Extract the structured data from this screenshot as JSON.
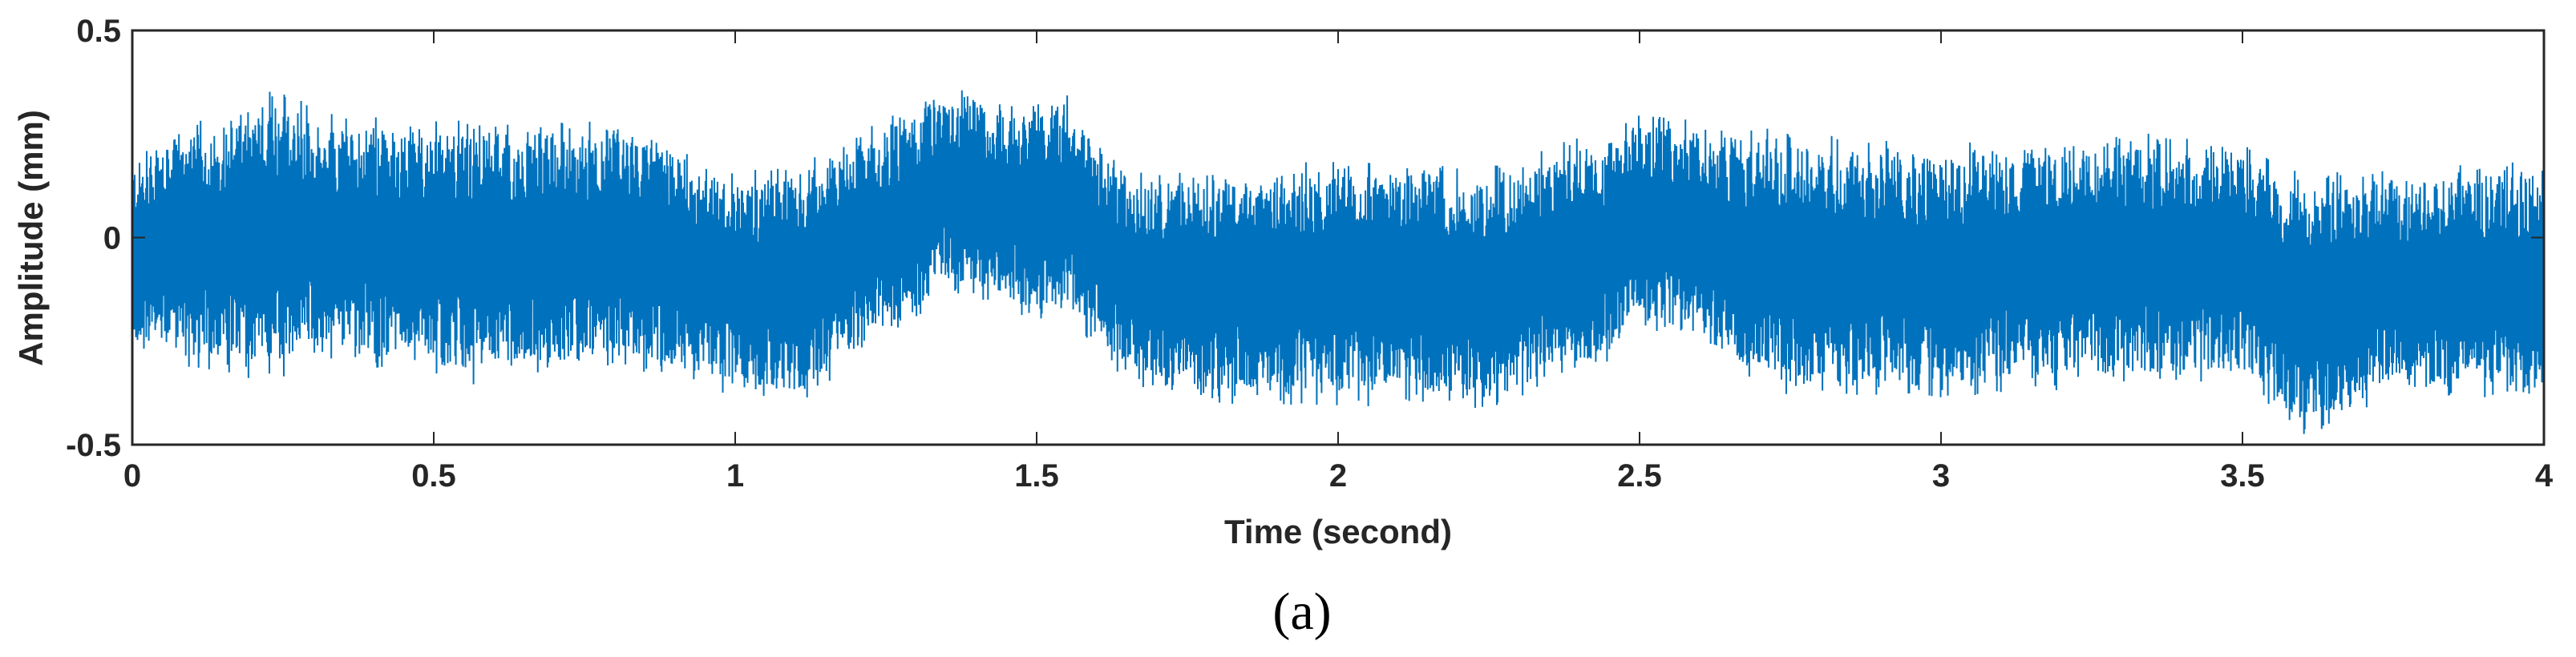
{
  "chart_data": {
    "type": "line",
    "title": "",
    "xlabel": "Time (second)",
    "ylabel": "Amplitude (mm)",
    "xlim": [
      0,
      4
    ],
    "ylim": [
      -0.5,
      0.5
    ],
    "x_ticks": [
      0,
      0.5,
      1,
      1.5,
      2,
      2.5,
      3,
      3.5,
      4
    ],
    "x_tick_labels": [
      "0",
      "0.5",
      "1",
      "1.5",
      "2",
      "2.5",
      "3",
      "3.5",
      "4"
    ],
    "y_ticks": [
      -0.5,
      0,
      0.5
    ],
    "y_tick_labels": [
      "-0.5",
      "0",
      "0.5"
    ],
    "grid": false,
    "legend": "none",
    "series_color": "#0072BD",
    "series": [
      {
        "description_of_shape": "dense high-frequency vibration signal",
        "envelope": {
          "t": [
            0.0,
            0.25,
            0.3,
            0.55,
            0.75,
            0.8,
            1.0,
            1.1,
            1.3,
            1.35,
            1.5,
            1.55,
            1.65,
            1.8,
            2.0,
            2.25,
            2.45,
            2.5,
            2.75,
            3.0,
            3.25,
            3.5,
            3.6,
            3.75,
            4.0
          ],
          "upper": [
            0.2,
            0.38,
            0.3,
            0.28,
            0.28,
            0.3,
            0.15,
            0.18,
            0.32,
            0.36,
            0.32,
            0.34,
            0.15,
            0.17,
            0.18,
            0.17,
            0.26,
            0.3,
            0.25,
            0.22,
            0.26,
            0.22,
            0.15,
            0.16,
            0.18
          ],
          "lower": [
            -0.28,
            -0.35,
            -0.28,
            -0.35,
            -0.33,
            -0.3,
            -0.38,
            -0.4,
            -0.2,
            -0.12,
            -0.2,
            -0.18,
            -0.35,
            -0.4,
            -0.4,
            -0.42,
            -0.3,
            -0.2,
            -0.38,
            -0.38,
            -0.36,
            -0.35,
            -0.48,
            -0.38,
            -0.4
          ]
        }
      }
    ]
  },
  "panel_label": "(a)"
}
